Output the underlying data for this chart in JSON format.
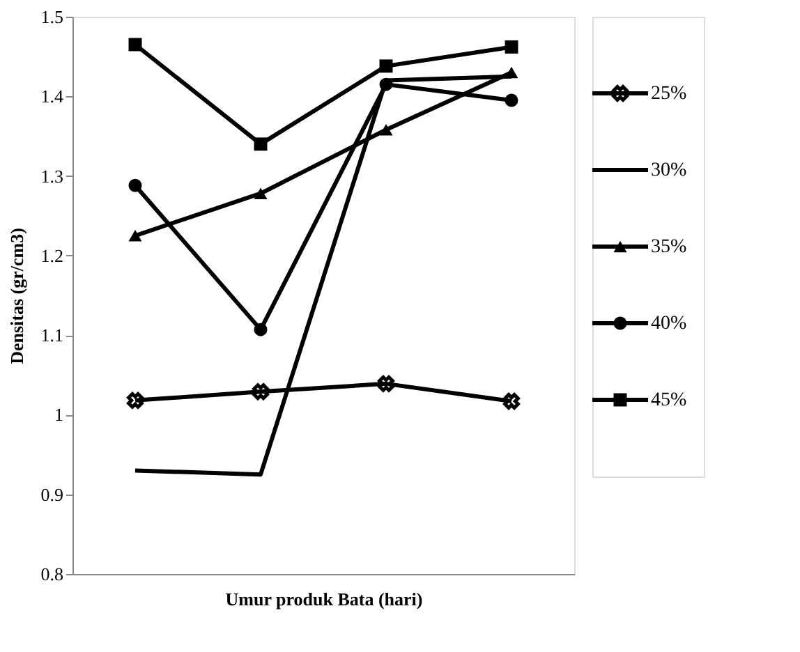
{
  "chart_data": {
    "type": "line",
    "xlabel": "Umur produk Bata (hari)",
    "ylabel": "Densitas (gr/cm3)",
    "categories": [
      null,
      null,
      null,
      null
    ],
    "ylim": [
      0.8,
      1.5
    ],
    "yticks": [
      0.8,
      0.9,
      1,
      1.1,
      1.2,
      1.3,
      1.4,
      1.5
    ],
    "grid": false,
    "legend": "right",
    "tick_labels": "y",
    "line_style": "solid",
    "series": [
      {
        "name": "25%",
        "color": "#000000",
        "marker": "cross",
        "values": [
          1.018,
          1.029,
          1.039,
          1.017
        ]
      },
      {
        "name": "30%",
        "color": "#000000",
        "marker": "none",
        "values": [
          0.93,
          0.925,
          1.42,
          1.425
        ]
      },
      {
        "name": "35%",
        "color": "#000000",
        "marker": "triangle",
        "values": [
          1.225,
          1.278,
          1.358,
          1.43
        ]
      },
      {
        "name": "40%",
        "color": "#000000",
        "marker": "circle",
        "values": [
          1.288,
          1.107,
          1.415,
          1.395
        ]
      },
      {
        "name": "45%",
        "color": "#000000",
        "marker": "square",
        "values": [
          1.465,
          1.34,
          1.438,
          1.462
        ]
      }
    ]
  }
}
